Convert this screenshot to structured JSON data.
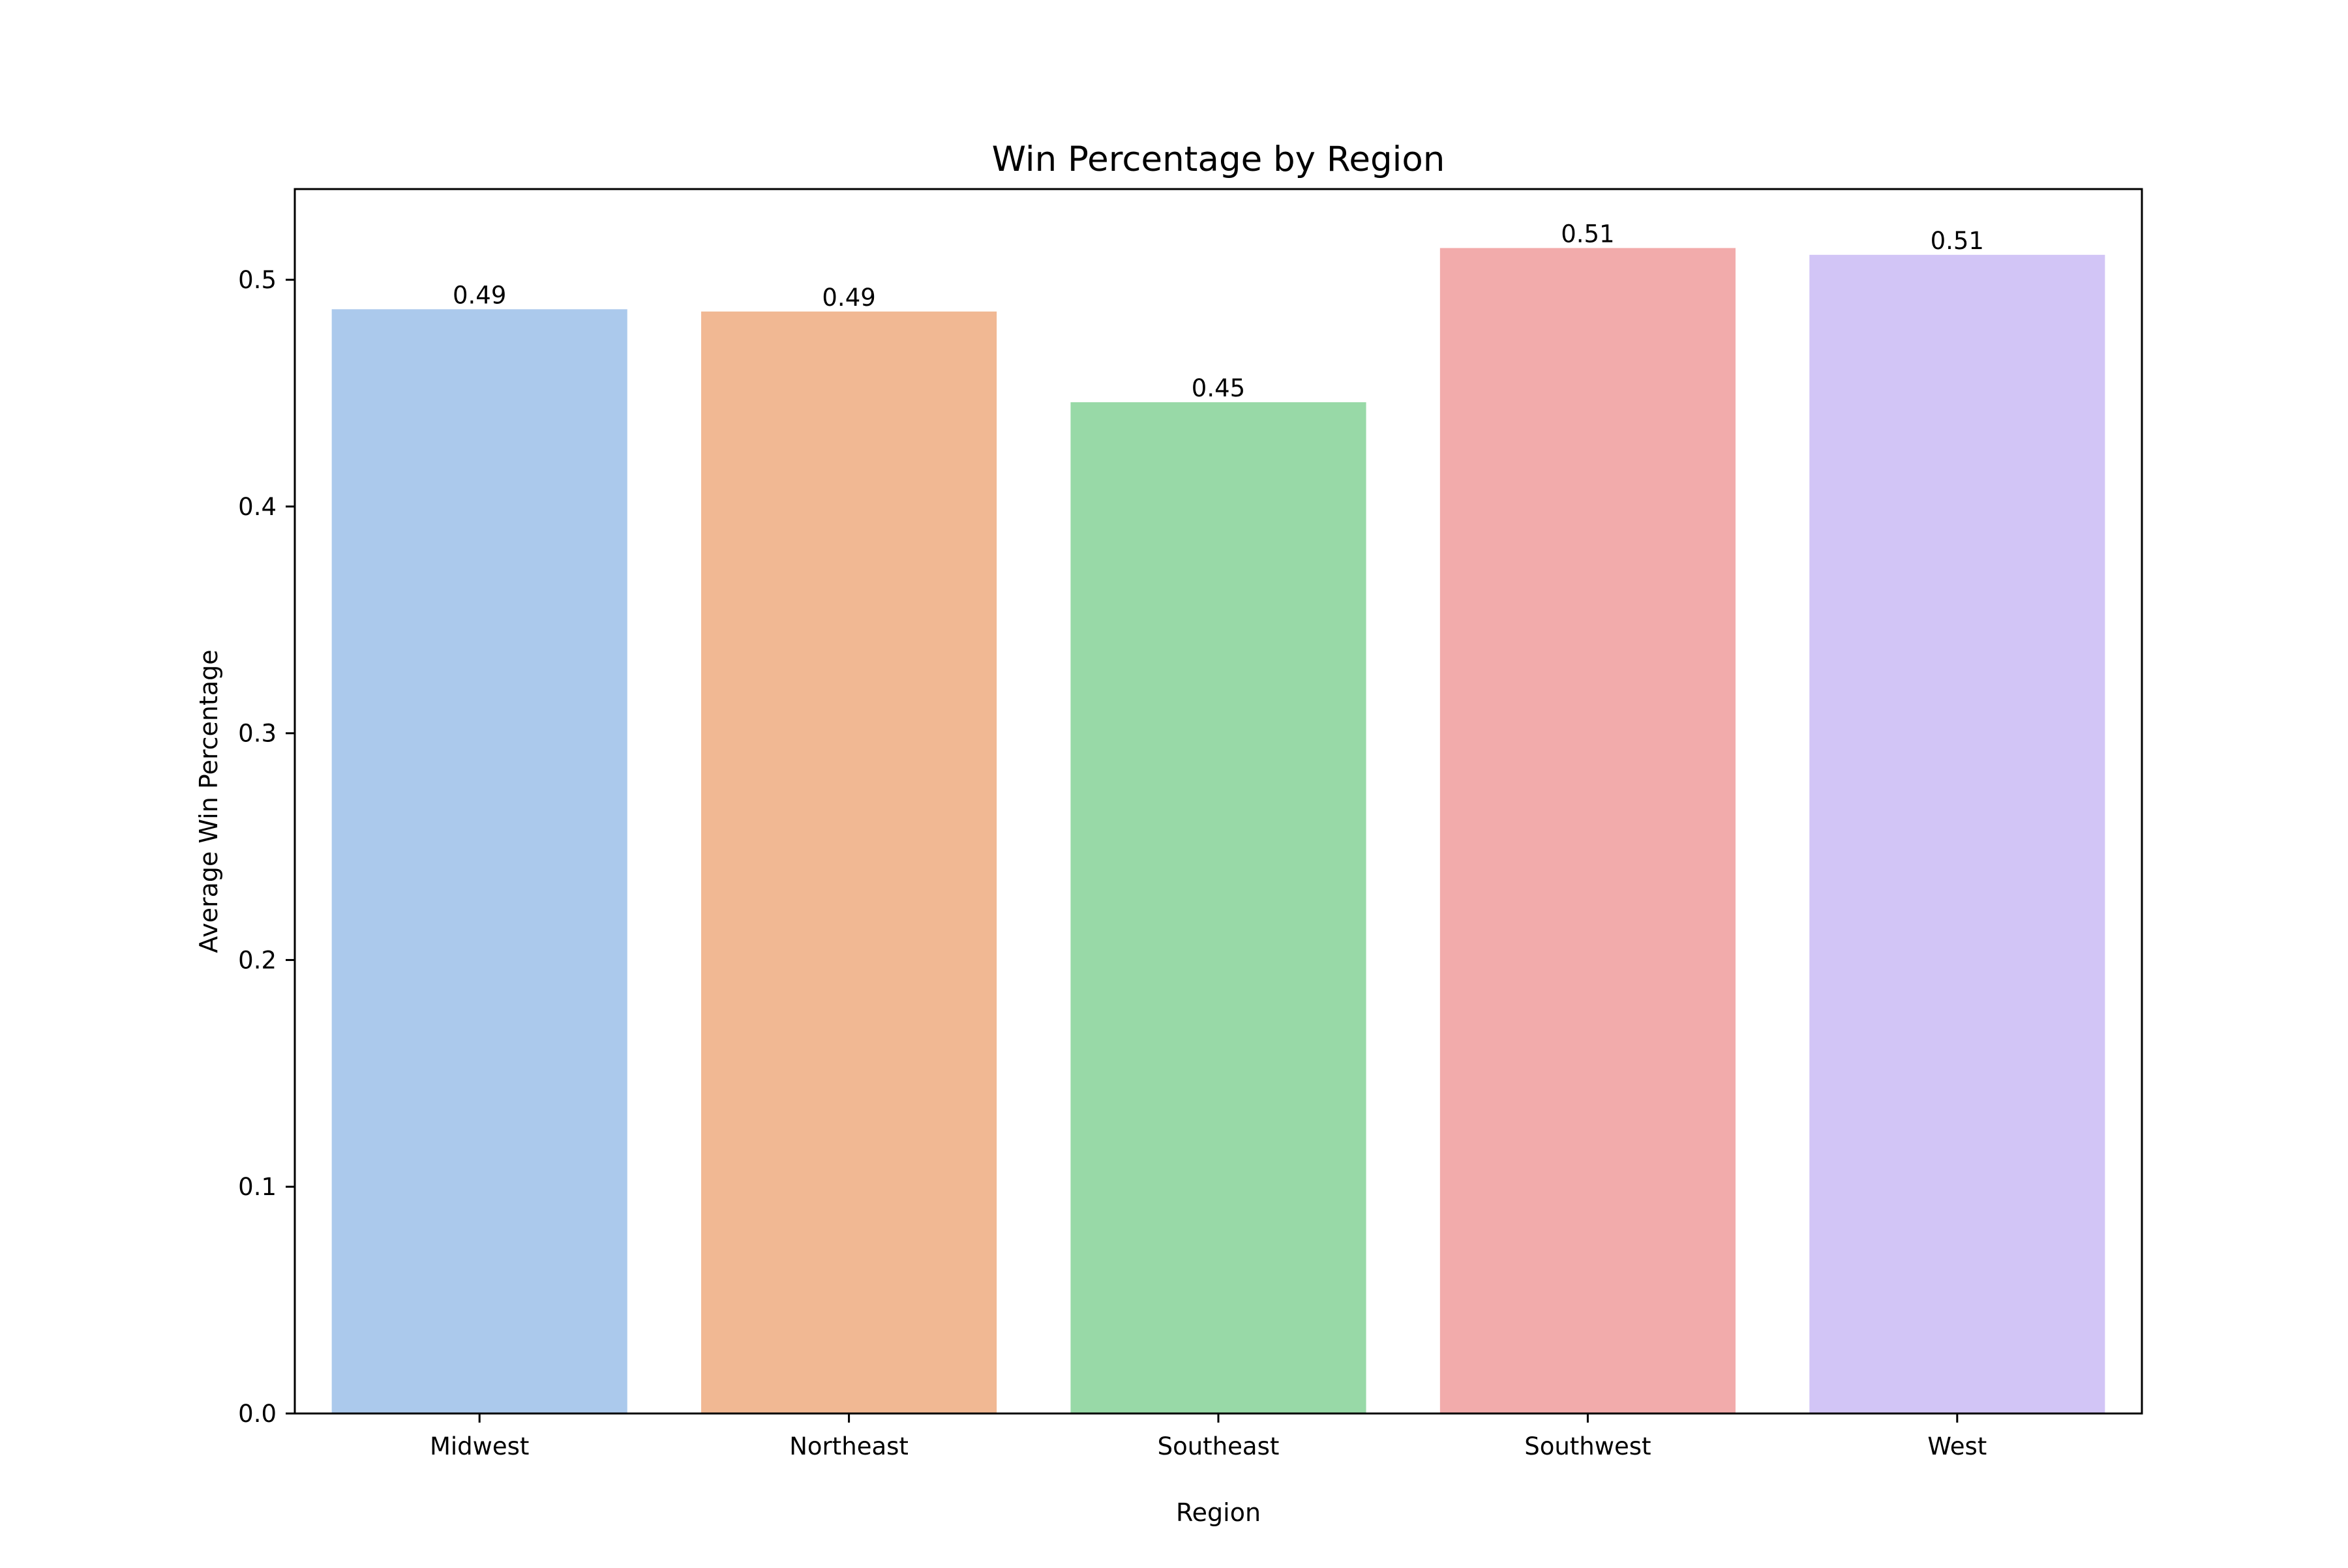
{
  "chart_data": {
    "type": "bar",
    "title": "Win Percentage by Region",
    "xlabel": "Region",
    "ylabel": "Average Win Percentage",
    "categories": [
      "Midwest",
      "Northeast",
      "Southeast",
      "Southwest",
      "West"
    ],
    "values": [
      0.487,
      0.486,
      0.446,
      0.514,
      0.511
    ],
    "data_labels": [
      "0.49",
      "0.49",
      "0.45",
      "0.51",
      "0.51"
    ],
    "colors": [
      "#abc9ec",
      "#f1b893",
      "#98d9a7",
      "#f2abab",
      "#d2c5f6"
    ],
    "ylim": [
      0,
      0.54
    ],
    "yticks": [
      0.0,
      0.1,
      0.2,
      0.3,
      0.4,
      0.5
    ],
    "ytick_labels": [
      "0.0",
      "0.1",
      "0.2",
      "0.3",
      "0.4",
      "0.5"
    ],
    "grid": false,
    "legend": "none"
  }
}
